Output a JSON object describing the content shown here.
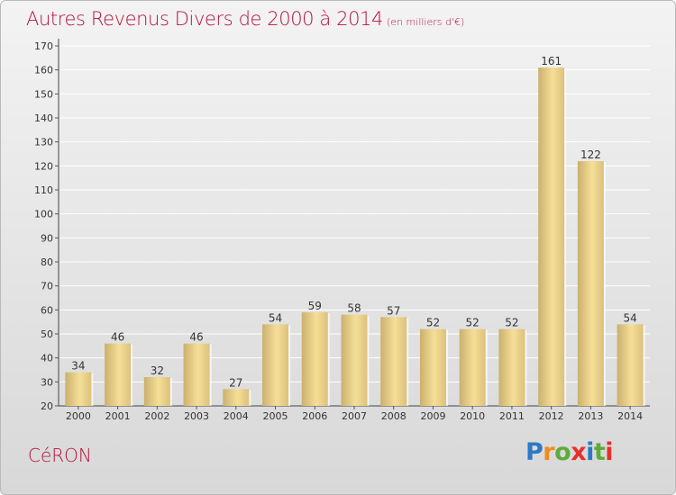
{
  "header": {
    "title": "Autres Revenus Divers de 2000 à 2014",
    "subtitle": "(en milliers d'€)"
  },
  "footer": {
    "commune": "CéRON",
    "brand": "Proxiti"
  },
  "colors": {
    "title": "#b4113c",
    "bar_light": "#f5df97",
    "bar_dark": "#cbb06e",
    "brand": [
      "#2c79c4",
      "#f08c1e",
      "#5cab3c",
      "#e4312b",
      "#2c79c4",
      "#5cab3c",
      "#e4312b"
    ]
  },
  "chart_data": {
    "type": "bar",
    "title": "Autres Revenus Divers de 2000 à 2014",
    "subtitle": "(en milliers d'€)",
    "categories": [
      "2000",
      "2001",
      "2002",
      "2003",
      "2004",
      "2005",
      "2006",
      "2007",
      "2008",
      "2009",
      "2010",
      "2011",
      "2012",
      "2013",
      "2014"
    ],
    "values": [
      34,
      46,
      32,
      46,
      27,
      54,
      59,
      58,
      57,
      52,
      52,
      52,
      161,
      122,
      54
    ],
    "ylim": [
      20,
      170
    ],
    "yticks": [
      20,
      30,
      40,
      50,
      60,
      70,
      80,
      90,
      100,
      110,
      120,
      130,
      140,
      150,
      160,
      170
    ],
    "grid": true
  }
}
